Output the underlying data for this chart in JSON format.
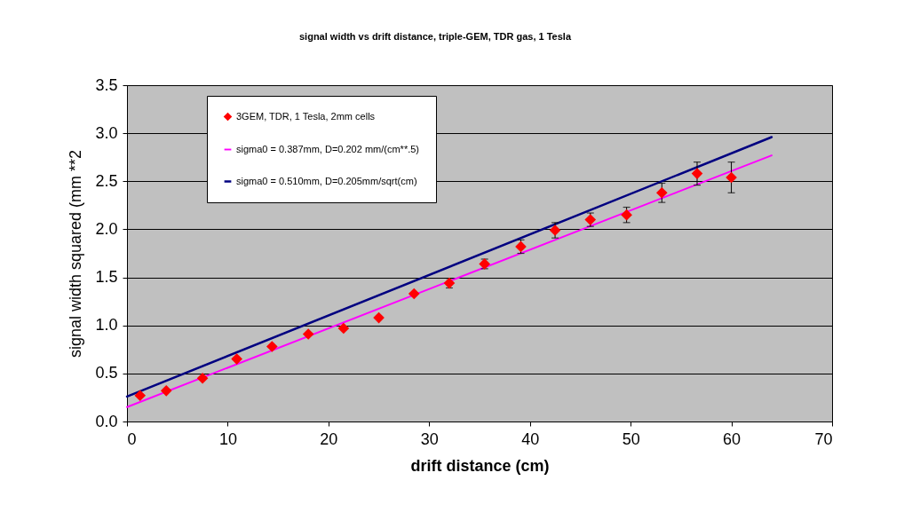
{
  "chart_data": {
    "type": "scatter",
    "title": "signal width vs drift distance, triple-GEM, TDR gas, 1 Tesla",
    "xlabel": "drift distance (cm)",
    "ylabel": "signal width squared (mm **2",
    "series": [
      {
        "name": "3GEM, TDR, 1 Tesla, 2mm cells",
        "color": "#ff0000",
        "marker": "diamond",
        "x": [
          1.3,
          3.9,
          7.5,
          10.9,
          14.4,
          18.0,
          21.5,
          25.0,
          28.5,
          32.0,
          35.5,
          39.1,
          42.5,
          46.0,
          49.6,
          53.1,
          56.6,
          60.0
        ],
        "values": [
          0.27,
          0.32,
          0.45,
          0.65,
          0.78,
          0.91,
          0.97,
          1.08,
          1.33,
          1.44,
          1.64,
          1.82,
          1.99,
          2.1,
          2.15,
          2.38,
          2.58,
          2.54
        ],
        "errors": [
          null,
          null,
          null,
          null,
          null,
          null,
          null,
          null,
          null,
          0.05,
          0.05,
          0.07,
          0.08,
          0.07,
          0.08,
          0.1,
          0.12,
          0.16
        ]
      },
      {
        "name": "sigma0 = 0.387mm, D=0.202 mm/(cm**.5)",
        "type": "line",
        "color": "#ff00ff",
        "x": [
          0,
          64
        ],
        "values": [
          0.15,
          2.77
        ]
      },
      {
        "name": "sigma0 = 0.510mm, D=0.205mm/sqrt(cm)",
        "type": "line",
        "color": "#000080",
        "x": [
          0,
          64
        ],
        "values": [
          0.26,
          2.96
        ]
      }
    ],
    "xlim": [
      0,
      70
    ],
    "xticks": [
      0,
      10,
      20,
      30,
      40,
      50,
      60,
      70
    ],
    "ylim": [
      0,
      3.5
    ],
    "yticks": [
      {
        "value": 0,
        "label": "0.0"
      },
      {
        "value": 0.5,
        "label": "0.5"
      },
      {
        "value": 1,
        "label": "1.0"
      },
      {
        "value": 1.5,
        "label": "1.5"
      },
      {
        "value": 2,
        "label": "2.0"
      },
      {
        "value": 2.5,
        "label": "2.5"
      },
      {
        "value": 3,
        "label": "3.0"
      },
      {
        "value": 3.5,
        "label": "3.5"
      }
    ],
    "grid": "y",
    "legend": "top left"
  }
}
